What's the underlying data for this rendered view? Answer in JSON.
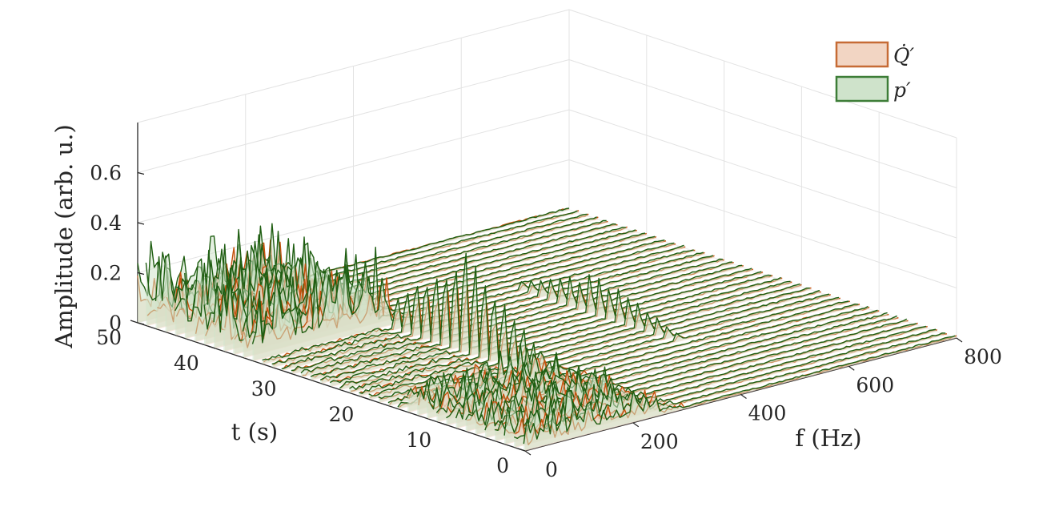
{
  "chart_data": {
    "type": "waterfall-3d",
    "xlabel": "f (Hz)",
    "ylabel": "t (s)",
    "zlabel": "Amplitude (arb. u.)",
    "xlim": [
      0,
      800
    ],
    "ylim": [
      0,
      50
    ],
    "zlim": [
      0,
      0.8
    ],
    "xticks": [
      "0",
      "200",
      "400",
      "600",
      "800"
    ],
    "yticks": [
      "0",
      "10",
      "20",
      "30",
      "40",
      "50"
    ],
    "zticks": [
      "0",
      "0.2",
      "0.4",
      "0.6"
    ],
    "grid": true,
    "legend_position": "top-right",
    "series": [
      {
        "name": "Q̇′",
        "edge_color": "#c66b35",
        "fill_color": "#f2d5c3",
        "line_color": "#c4520e"
      },
      {
        "name": "p′",
        "edge_color": "#3d7d37",
        "fill_color": "#cfe3cb",
        "line_color": "#1f5e12"
      }
    ],
    "slices": {
      "t_start": 0,
      "t_end": 50,
      "count": 41,
      "regimes": [
        {
          "t_from": 0,
          "t_to": 15,
          "behavior": "broadband",
          "f_band": [
            0,
            250
          ],
          "Q_amp": 0.08,
          "p_amp": 0.1
        },
        {
          "t_from": 15,
          "t_to": 35,
          "behavior": "tonal",
          "f_peak": 250,
          "f_harmonic": 500,
          "Q_peak": 0.4,
          "p_peak": 0.6
        },
        {
          "t_from": 35,
          "t_to": 50,
          "behavior": "broadband",
          "f_band": [
            0,
            250
          ],
          "Q_amp": 0.14,
          "p_amp": 0.22
        }
      ]
    }
  }
}
